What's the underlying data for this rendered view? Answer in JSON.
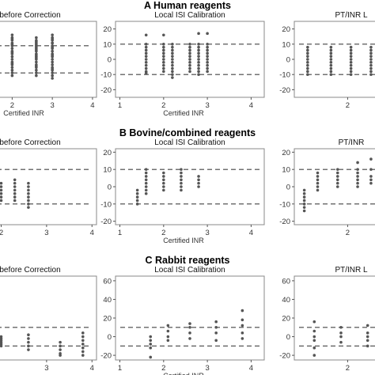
{
  "sections": [
    {
      "title": "A Human reagents"
    },
    {
      "title": "B Bovine/combined reagents"
    },
    {
      "title": "C Rabbit reagents"
    }
  ],
  "colors": {
    "points": "#555555",
    "lines": "#444444",
    "frame": "#888888"
  },
  "chart_data": [
    {
      "type": "scatter",
      "panel": "A1",
      "title": "before Correction",
      "xlabel": "Certified INR",
      "xlim": [
        1.5,
        4.1
      ],
      "ylim": [
        -28,
        28
      ],
      "x_ticks": [
        2,
        3,
        4
      ],
      "y_ticks": [],
      "limits": [
        10,
        -10
      ],
      "series": [
        {
          "x": [
            2.0,
            2.0,
            2.0,
            2.0,
            2.0,
            2.0,
            2.0,
            2.0,
            2.0,
            2.0,
            2.0,
            2.0,
            2.0,
            2.0,
            2.0,
            2.0,
            2.0,
            2.0,
            2.0,
            2.0,
            2.6,
            2.6,
            2.6,
            2.6,
            2.6,
            2.6,
            2.6,
            2.6,
            2.6,
            2.6,
            2.6,
            2.6,
            2.6,
            2.6,
            2.6,
            2.6,
            2.6,
            2.6,
            2.6,
            2.6,
            2.6,
            2.6,
            3.0,
            3.0,
            3.0,
            3.0,
            3.0,
            3.0,
            3.0,
            3.0,
            3.0,
            3.0,
            3.0,
            3.0,
            3.0,
            3.0,
            3.0,
            3.0,
            3.0,
            3.0,
            3.0,
            3.0,
            3.0,
            3.0
          ],
          "y": [
            18,
            16,
            14,
            12,
            10,
            8,
            6,
            4,
            2,
            0,
            -2,
            -4,
            -6,
            -8,
            -10,
            -12,
            15,
            11,
            5,
            -3,
            16,
            14,
            12,
            10,
            8,
            6,
            4,
            2,
            0,
            -2,
            -4,
            -6,
            -8,
            -10,
            -12,
            13,
            9,
            3,
            -5,
            11,
            7,
            1,
            18,
            16,
            14,
            12,
            10,
            8,
            6,
            4,
            2,
            0,
            -2,
            -4,
            -6,
            -8,
            -10,
            -12,
            -14,
            15,
            9,
            3,
            -7,
            12
          ]
        }
      ]
    },
    {
      "type": "scatter",
      "panel": "A2",
      "title": "Local ISI Calibration",
      "xlabel": "Certified INR",
      "xlim": [
        0.9,
        4.3
      ],
      "ylim": [
        -25,
        25
      ],
      "x_ticks": [
        1,
        2,
        3,
        4
      ],
      "y_ticks": [
        -20,
        -10,
        0,
        10,
        20
      ],
      "limits": [
        10,
        -10
      ],
      "series": [
        {
          "x": [
            1.6,
            1.6,
            1.6,
            1.6,
            1.6,
            1.6,
            1.6,
            1.6,
            1.6,
            1.6,
            1.6,
            1.6,
            2.0,
            2.0,
            2.0,
            2.0,
            2.0,
            2.0,
            2.0,
            2.0,
            2.0,
            2.0,
            2.0,
            2.2,
            2.2,
            2.2,
            2.2,
            2.2,
            2.2,
            2.2,
            2.2,
            2.2,
            2.2,
            2.2,
            2.2,
            2.6,
            2.6,
            2.6,
            2.6,
            2.6,
            2.6,
            2.6,
            2.6,
            2.6,
            2.6,
            2.8,
            2.8,
            2.8,
            2.8,
            2.8,
            2.8,
            2.8,
            2.8,
            2.8,
            2.8,
            2.8,
            2.8,
            3.0,
            3.0,
            3.0,
            3.0,
            3.0,
            3.0,
            3.0,
            3.0,
            3.0,
            3.0,
            3.0
          ],
          "y": [
            16,
            10,
            8,
            6,
            4,
            2,
            0,
            -2,
            -4,
            -6,
            -8,
            -9,
            16,
            10,
            8,
            6,
            4,
            2,
            0,
            -2,
            -4,
            -6,
            -8,
            10,
            8,
            6,
            4,
            2,
            0,
            -2,
            -4,
            -6,
            -8,
            -10,
            -12,
            10,
            8,
            6,
            4,
            2,
            0,
            -2,
            -4,
            -6,
            -8,
            17,
            10,
            8,
            6,
            4,
            2,
            0,
            -2,
            -4,
            -6,
            -8,
            -10,
            17,
            10,
            8,
            6,
            4,
            2,
            0,
            -2,
            -4,
            -6,
            -8
          ]
        }
      ]
    },
    {
      "type": "scatter",
      "panel": "A3",
      "title": "PT/INR L",
      "xlabel": "",
      "xlim": [
        1.2,
        2.6
      ],
      "ylim": [
        -25,
        25
      ],
      "x_ticks": [
        2
      ],
      "y_ticks": [
        -20,
        -10,
        0,
        10,
        20
      ],
      "limits": [
        10,
        -10
      ],
      "series": [
        {
          "x": [
            1.4,
            1.4,
            1.4,
            1.4,
            1.4,
            1.4,
            1.4,
            1.4,
            1.4,
            1.4,
            1.75,
            1.75,
            1.75,
            1.75,
            1.75,
            1.75,
            1.75,
            1.75,
            1.75,
            1.75,
            2.05,
            2.05,
            2.05,
            2.05,
            2.05,
            2.05,
            2.05,
            2.05,
            2.05,
            2.05,
            2.35,
            2.35,
            2.35,
            2.35,
            2.35,
            2.35,
            2.35,
            2.35,
            2.35,
            2.35
          ],
          "y": [
            8,
            6,
            4,
            2,
            0,
            -2,
            -4,
            -6,
            -8,
            -10,
            8,
            6,
            4,
            2,
            0,
            -2,
            -4,
            -6,
            -8,
            -10,
            8,
            6,
            4,
            2,
            0,
            -2,
            -4,
            -6,
            -8,
            -10,
            8,
            6,
            4,
            2,
            0,
            -2,
            -4,
            -6,
            -8,
            -10
          ]
        }
      ]
    },
    {
      "type": "scatter",
      "panel": "B1",
      "title": "before Correction",
      "xlabel": "",
      "xlim": [
        1.8,
        4.1
      ],
      "ylim": [
        -22,
        22
      ],
      "x_ticks": [
        2,
        3,
        4
      ],
      "y_ticks": [],
      "limits": [
        10,
        -10
      ],
      "series": [
        {
          "x": [
            2.0,
            2.0,
            2.0,
            2.0,
            2.0,
            2.0,
            2.3,
            2.3,
            2.3,
            2.3,
            2.3,
            2.3,
            2.3,
            2.6,
            2.6,
            2.6,
            2.6,
            2.6,
            2.6,
            2.6,
            2.6
          ],
          "y": [
            2,
            0,
            -2,
            -4,
            -6,
            -8,
            4,
            2,
            0,
            -2,
            -4,
            -6,
            -8,
            2,
            0,
            -2,
            -4,
            -6,
            -8,
            -10,
            -12
          ]
        }
      ]
    },
    {
      "type": "scatter",
      "panel": "B2",
      "title": "Local ISI Calibration",
      "xlabel": "Certified INR",
      "xlim": [
        0.9,
        4.3
      ],
      "ylim": [
        -22,
        22
      ],
      "x_ticks": [
        1,
        2,
        3,
        4
      ],
      "y_ticks": [
        -20,
        -10,
        0,
        10,
        20
      ],
      "limits": [
        10,
        -10
      ],
      "series": [
        {
          "x": [
            1.4,
            1.4,
            1.4,
            1.4,
            1.4,
            1.6,
            1.6,
            1.6,
            1.6,
            1.6,
            1.6,
            1.6,
            1.6,
            2.0,
            2.0,
            2.0,
            2.0,
            2.0,
            2.0,
            2.4,
            2.4,
            2.4,
            2.4,
            2.4,
            2.4,
            2.4,
            2.8,
            2.8,
            2.8,
            2.8
          ],
          "y": [
            -2,
            -4,
            -6,
            -8,
            -10,
            10,
            8,
            6,
            4,
            2,
            0,
            -2,
            -4,
            8,
            6,
            4,
            2,
            0,
            -2,
            10,
            8,
            6,
            4,
            2,
            0,
            -2,
            6,
            4,
            2,
            0
          ]
        }
      ]
    },
    {
      "type": "scatter",
      "panel": "B3",
      "title": "PT/INR",
      "xlabel": "",
      "xlim": [
        1.2,
        2.6
      ],
      "ylim": [
        -22,
        22
      ],
      "x_ticks": [
        2
      ],
      "y_ticks": [
        -20,
        -10,
        0,
        10,
        20
      ],
      "limits": [
        10,
        -10
      ],
      "series": [
        {
          "x": [
            1.35,
            1.35,
            1.35,
            1.35,
            1.35,
            1.35,
            1.35,
            1.55,
            1.55,
            1.55,
            1.55,
            1.55,
            1.55,
            1.85,
            1.85,
            1.85,
            1.85,
            1.85,
            1.85,
            2.15,
            2.15,
            2.15,
            2.15,
            2.15,
            2.15,
            2.15,
            2.35,
            2.35,
            2.35,
            2.35,
            2.35
          ],
          "y": [
            -2,
            -4,
            -6,
            -8,
            -10,
            -12,
            -14,
            8,
            6,
            4,
            2,
            0,
            -2,
            10,
            8,
            6,
            4,
            2,
            0,
            14,
            10,
            8,
            6,
            4,
            2,
            0,
            16,
            10,
            6,
            4,
            2
          ]
        }
      ]
    },
    {
      "type": "scatter",
      "panel": "C1",
      "title": "before Correction",
      "xlabel": "",
      "xlim": [
        1.8,
        4.1
      ],
      "ylim": [
        -25,
        65
      ],
      "x_ticks": [
        3,
        4
      ],
      "y_ticks": [],
      "limits": [
        10,
        -10
      ],
      "series": [
        {
          "x": [
            2.0,
            2.0,
            2.0,
            2.0,
            2.0,
            2.0,
            2.6,
            2.6,
            2.6,
            2.6,
            2.6,
            3.3,
            3.3,
            3.3,
            3.3,
            3.3,
            3.8,
            3.8,
            3.8,
            3.8,
            3.8,
            3.8,
            3.8
          ],
          "y": [
            0,
            -2,
            -4,
            -6,
            -8,
            -10,
            2,
            -2,
            -6,
            -10,
            -14,
            -6,
            -10,
            -14,
            -18,
            -20,
            4,
            0,
            -4,
            -8,
            -12,
            -16,
            -20
          ]
        }
      ]
    },
    {
      "type": "scatter",
      "panel": "C2",
      "title": "Local ISI Calibration",
      "xlabel": "Certified INR",
      "xlim": [
        0.9,
        4.3
      ],
      "ylim": [
        -25,
        65
      ],
      "x_ticks": [
        1,
        2,
        3,
        4
      ],
      "y_ticks": [
        -20,
        0,
        20,
        40,
        60
      ],
      "limits": [
        10,
        -10
      ],
      "series": [
        {
          "x": [
            1.7,
            1.7,
            1.7,
            1.7,
            1.7,
            2.1,
            2.1,
            2.1,
            2.1,
            2.6,
            2.6,
            2.6,
            2.6,
            3.2,
            3.2,
            3.2,
            3.2,
            3.8,
            3.8,
            3.8,
            3.8,
            3.8
          ],
          "y": [
            0,
            -4,
            -8,
            -12,
            -22,
            12,
            6,
            0,
            -4,
            14,
            10,
            4,
            -2,
            16,
            10,
            4,
            -4,
            28,
            18,
            12,
            4,
            -2
          ]
        }
      ]
    },
    {
      "type": "scatter",
      "panel": "C3",
      "title": "PT/INR L",
      "xlabel": "",
      "xlim": [
        1.2,
        2.6
      ],
      "ylim": [
        -25,
        65
      ],
      "x_ticks": [
        2
      ],
      "y_ticks": [
        -20,
        0,
        20,
        40,
        60
      ],
      "limits": [
        10,
        -10
      ],
      "series": [
        {
          "x": [
            1.5,
            1.5,
            1.5,
            1.5,
            1.5,
            1.5,
            1.9,
            1.9,
            1.9,
            1.9,
            2.3,
            2.3,
            2.3,
            2.3,
            2.3
          ],
          "y": [
            16,
            6,
            0,
            -4,
            -12,
            -20,
            10,
            4,
            0,
            -6,
            12,
            4,
            0,
            -4,
            -10
          ]
        }
      ]
    }
  ]
}
